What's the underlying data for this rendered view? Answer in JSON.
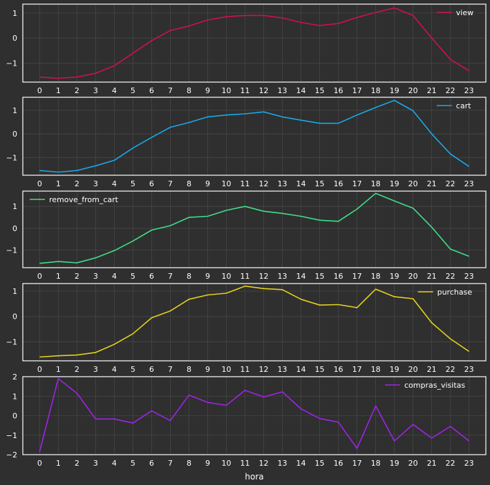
{
  "chart_data": [
    {
      "type": "line",
      "x": [
        0,
        1,
        2,
        3,
        4,
        5,
        6,
        7,
        8,
        9,
        10,
        11,
        12,
        13,
        14,
        15,
        16,
        17,
        18,
        19,
        20,
        21,
        22,
        23
      ],
      "series": [
        {
          "name": "view",
          "color": "#d1104f",
          "values": [
            -1.55,
            -1.6,
            -1.55,
            -1.4,
            -1.1,
            -0.6,
            -0.1,
            0.3,
            0.48,
            0.72,
            0.85,
            0.9,
            0.9,
            0.8,
            0.62,
            0.5,
            0.58,
            0.82,
            1.02,
            1.2,
            0.9,
            0.0,
            -0.85,
            -1.3
          ]
        }
      ],
      "ylim": [
        -1.75,
        1.35
      ],
      "yticks": [
        -1,
        0,
        1
      ],
      "legend": "upper-right",
      "grid": true,
      "xlabel": ""
    },
    {
      "type": "line",
      "x": [
        0,
        1,
        2,
        3,
        4,
        5,
        6,
        7,
        8,
        9,
        10,
        11,
        12,
        13,
        14,
        15,
        16,
        17,
        18,
        19,
        20,
        21,
        22,
        23
      ],
      "series": [
        {
          "name": "cart",
          "color": "#1aa9ea",
          "values": [
            -1.55,
            -1.62,
            -1.55,
            -1.35,
            -1.12,
            -0.6,
            -0.15,
            0.28,
            0.48,
            0.72,
            0.8,
            0.85,
            0.93,
            0.72,
            0.58,
            0.45,
            0.45,
            0.8,
            1.12,
            1.42,
            0.98,
            0.0,
            -0.85,
            -1.38
          ]
        }
      ],
      "ylim": [
        -1.75,
        1.55
      ],
      "yticks": [
        -1,
        0,
        1
      ],
      "legend": "upper-right",
      "grid": true,
      "xlabel": ""
    },
    {
      "type": "line",
      "x": [
        0,
        1,
        2,
        3,
        4,
        5,
        6,
        7,
        8,
        9,
        10,
        11,
        12,
        13,
        14,
        15,
        16,
        17,
        18,
        19,
        20,
        21,
        22,
        23
      ],
      "series": [
        {
          "name": "remove_from_cart",
          "color": "#3fe08a",
          "values": [
            -1.6,
            -1.52,
            -1.58,
            -1.35,
            -1.02,
            -0.58,
            -0.08,
            0.12,
            0.5,
            0.55,
            0.82,
            1.0,
            0.78,
            0.68,
            0.55,
            0.37,
            0.32,
            0.88,
            1.6,
            1.25,
            0.92,
            0.05,
            -0.95,
            -1.28
          ]
        }
      ],
      "ylim": [
        -1.8,
        1.7
      ],
      "yticks": [
        -1,
        0,
        1
      ],
      "legend": "upper-left",
      "grid": true,
      "xlabel": ""
    },
    {
      "type": "line",
      "x": [
        0,
        1,
        2,
        3,
        4,
        5,
        6,
        7,
        8,
        9,
        10,
        11,
        12,
        13,
        14,
        15,
        16,
        17,
        18,
        19,
        20,
        21,
        22,
        23
      ],
      "series": [
        {
          "name": "purchase",
          "color": "#e6d31c",
          "values": [
            -1.6,
            -1.55,
            -1.52,
            -1.42,
            -1.1,
            -0.68,
            -0.05,
            0.22,
            0.68,
            0.85,
            0.92,
            1.2,
            1.1,
            1.06,
            0.68,
            0.45,
            0.47,
            0.35,
            1.08,
            0.78,
            0.7,
            -0.25,
            -0.88,
            -1.38
          ]
        }
      ],
      "ylim": [
        -1.75,
        1.3
      ],
      "yticks": [
        -1,
        0,
        1
      ],
      "legend": "upper-right",
      "grid": true,
      "xlabel": ""
    },
    {
      "type": "line",
      "x": [
        0,
        1,
        2,
        3,
        4,
        5,
        6,
        7,
        8,
        9,
        10,
        11,
        12,
        13,
        14,
        15,
        16,
        17,
        18,
        19,
        20,
        21,
        22,
        23
      ],
      "series": [
        {
          "name": "compras_visitas",
          "color": "#a023e8",
          "values": [
            -1.85,
            1.9,
            1.15,
            -0.17,
            -0.17,
            -0.38,
            0.25,
            -0.25,
            1.05,
            0.68,
            0.53,
            1.3,
            0.96,
            1.22,
            0.35,
            -0.15,
            -0.33,
            -1.68,
            0.5,
            -1.3,
            -0.45,
            -1.15,
            -0.55,
            -1.3
          ]
        }
      ],
      "ylim": [
        -2.0,
        2.0
      ],
      "yticks": [
        -2,
        -1,
        0,
        1,
        2
      ],
      "legend": "upper-right",
      "grid": true,
      "xlabel": "hora"
    }
  ]
}
